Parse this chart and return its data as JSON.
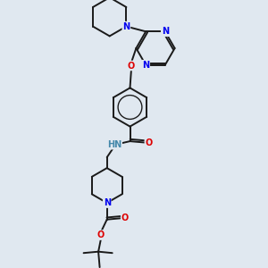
{
  "bg_color": "#e0e8f0",
  "bond_color": "#1a1a1a",
  "N_color": "#0000ee",
  "O_color": "#dd0000",
  "NH_color": "#4488aa",
  "line_width": 1.4,
  "figsize": [
    3.0,
    3.0
  ],
  "dpi": 100,
  "xlim": [
    0,
    10
  ],
  "ylim": [
    0,
    10
  ]
}
